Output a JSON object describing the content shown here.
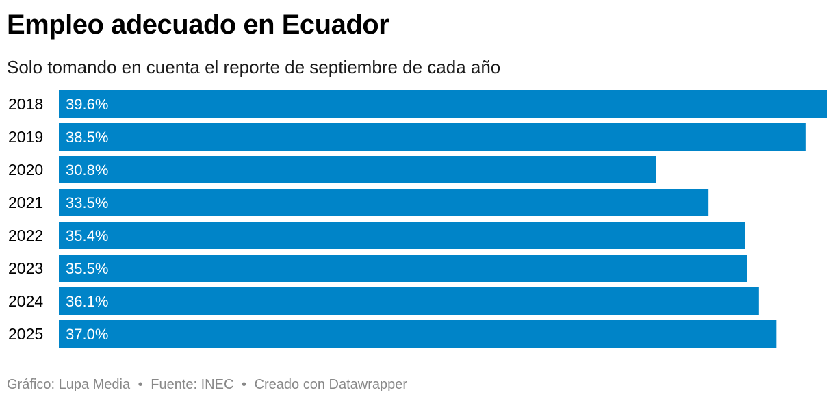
{
  "title": "Empleo adecuado en Ecuador",
  "subtitle": "Solo tomando en cuenta el reporte de septiembre de cada año",
  "footer": {
    "credit": "Gráfico: Lupa Media",
    "source": "Fuente: INEC",
    "tool": "Creado con Datawrapper",
    "separator": "•"
  },
  "colors": {
    "bar": "#0084c8",
    "bar_label": "#ffffff",
    "category_label": "#000000",
    "footer": "#888888"
  },
  "chart_data": {
    "type": "bar",
    "orientation": "horizontal",
    "categories": [
      "2018",
      "2019",
      "2020",
      "2021",
      "2022",
      "2023",
      "2024",
      "2025"
    ],
    "values": [
      39.6,
      38.5,
      30.8,
      33.5,
      35.4,
      35.5,
      36.1,
      37.0
    ],
    "labels": [
      "39.6%",
      "38.5%",
      "30.8%",
      "33.5%",
      "35.4%",
      "35.5%",
      "36.1%",
      "37.0%"
    ],
    "xlim": [
      0,
      39.6
    ],
    "grid": false,
    "legend": "none"
  }
}
